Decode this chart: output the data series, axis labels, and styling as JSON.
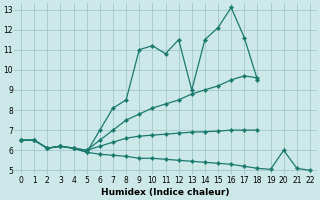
{
  "xlabel": "Humidex (Indice chaleur)",
  "bg_color": "#cce8e8",
  "grid_color": "#aacccc",
  "line_color": "#1a7a6e",
  "xlim": [
    -0.5,
    22.5
  ],
  "ylim": [
    4.8,
    13.3
  ],
  "xticks": [
    0,
    1,
    2,
    3,
    4,
    5,
    6,
    7,
    8,
    9,
    10,
    11,
    12,
    13,
    14,
    15,
    16,
    17,
    18,
    19,
    20,
    21,
    22
  ],
  "yticks": [
    5,
    6,
    7,
    8,
    9,
    10,
    11,
    12,
    13
  ],
  "line1_y": [
    6.5,
    6.5,
    6.1,
    6.2,
    6.1,
    5.9,
    7.0,
    8.1,
    8.5,
    11.0,
    11.2,
    10.8,
    11.5,
    9.0,
    11.5,
    12.1,
    13.1,
    11.6,
    9.5,
    null,
    null,
    null,
    null
  ],
  "line2_y": [
    6.5,
    6.5,
    6.1,
    6.2,
    6.1,
    6.0,
    6.5,
    7.0,
    7.5,
    7.8,
    8.1,
    8.3,
    8.5,
    8.8,
    9.0,
    9.2,
    9.5,
    9.7,
    9.6,
    null,
    null,
    null,
    null
  ],
  "line3_y": [
    6.5,
    6.5,
    6.1,
    6.2,
    6.1,
    6.0,
    6.2,
    6.4,
    6.6,
    6.7,
    6.75,
    6.8,
    6.85,
    6.9,
    6.92,
    6.95,
    7.0,
    7.0,
    7.0,
    null,
    null,
    null,
    null
  ],
  "line4_y": [
    6.5,
    6.5,
    6.1,
    6.2,
    6.1,
    5.9,
    5.8,
    5.75,
    5.7,
    5.6,
    5.6,
    5.55,
    5.5,
    5.45,
    5.4,
    5.35,
    5.3,
    5.2,
    5.1,
    5.05,
    6.0,
    5.1,
    5.0
  ]
}
